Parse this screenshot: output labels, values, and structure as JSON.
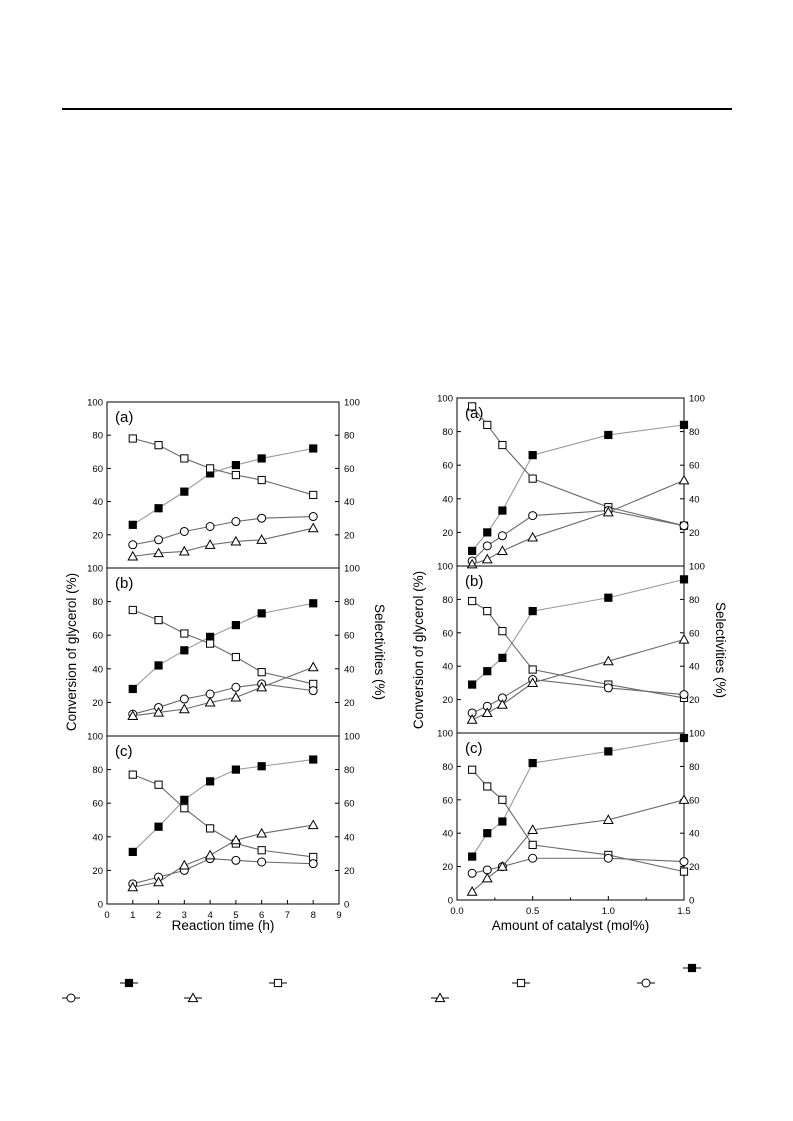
{
  "figure": {
    "left": {
      "ylabel_left": "Conversion of glycerol (%)",
      "ylabel_right": "Selectivities (%)",
      "xlabel": "Reaction time (h)",
      "xlim": [
        0,
        9
      ],
      "xticks": [
        0,
        1,
        2,
        3,
        4,
        5,
        6,
        7,
        8,
        9
      ],
      "panels": [
        "(a)",
        "(b)",
        "(c)"
      ]
    },
    "right": {
      "ylabel_left": "Conversion of glycerol (%)",
      "ylabel_right": "Selectivities (%)",
      "xlabel": "Amount of catalyst (mol%)",
      "xlim": [
        0.0,
        1.5
      ],
      "xticks": [
        "0.0",
        "0.5",
        "1.0",
        "1.5"
      ],
      "panels": [
        "(a)",
        "(b)",
        "(c)"
      ]
    },
    "legend_markers": [
      "filled-square",
      "open-square",
      "open-circle",
      "open-triangle"
    ]
  },
  "chart_data": [
    {
      "type": "line",
      "panel": "(a)",
      "group": "reaction-time",
      "xlabel": "Reaction time (h)",
      "ylabel": "Conversion of glycerol (%)",
      "ylabel_right": "Selectivities (%)",
      "x": [
        1,
        2,
        3,
        4,
        5,
        6,
        8
      ],
      "xlim": [
        0,
        9
      ],
      "ylim": [
        0,
        100
      ],
      "series": [
        {
          "marker": "filled-square",
          "values": [
            26,
            36,
            46,
            57,
            62,
            66,
            72
          ]
        },
        {
          "marker": "open-square",
          "values": [
            78,
            74,
            66,
            60,
            56,
            53,
            44
          ]
        },
        {
          "marker": "open-circle",
          "values": [
            14,
            17,
            22,
            25,
            28,
            30,
            31
          ]
        },
        {
          "marker": "open-triangle",
          "values": [
            7,
            9,
            10,
            14,
            16,
            17,
            24
          ]
        }
      ]
    },
    {
      "type": "line",
      "panel": "(b)",
      "group": "reaction-time",
      "xlabel": "Reaction time (h)",
      "ylabel": "Conversion of glycerol (%)",
      "ylabel_right": "Selectivities (%)",
      "x": [
        1,
        2,
        3,
        4,
        5,
        6,
        8
      ],
      "xlim": [
        0,
        9
      ],
      "ylim": [
        0,
        100
      ],
      "series": [
        {
          "marker": "filled-square",
          "values": [
            28,
            42,
            51,
            59,
            66,
            73,
            79
          ]
        },
        {
          "marker": "open-square",
          "values": [
            75,
            69,
            61,
            55,
            47,
            38,
            31
          ]
        },
        {
          "marker": "open-circle",
          "values": [
            13,
            17,
            22,
            25,
            29,
            31,
            27
          ]
        },
        {
          "marker": "open-triangle",
          "values": [
            12,
            14,
            16,
            20,
            23,
            29,
            41
          ]
        }
      ]
    },
    {
      "type": "line",
      "panel": "(c)",
      "group": "reaction-time",
      "xlabel": "Reaction time (h)",
      "ylabel": "Conversion of glycerol (%)",
      "ylabel_right": "Selectivities (%)",
      "x": [
        1,
        2,
        3,
        4,
        5,
        6,
        8
      ],
      "xlim": [
        0,
        9
      ],
      "ylim": [
        0,
        100
      ],
      "series": [
        {
          "marker": "filled-square",
          "values": [
            31,
            46,
            62,
            73,
            80,
            82,
            86
          ]
        },
        {
          "marker": "open-square",
          "values": [
            77,
            71,
            57,
            45,
            36,
            32,
            28
          ]
        },
        {
          "marker": "open-circle",
          "values": [
            12,
            16,
            20,
            27,
            26,
            25,
            24
          ]
        },
        {
          "marker": "open-triangle",
          "values": [
            10,
            13,
            23,
            29,
            38,
            42,
            47
          ]
        }
      ]
    },
    {
      "type": "line",
      "panel": "(a)",
      "group": "catalyst-amount",
      "xlabel": "Amount of catalyst (mol%)",
      "ylabel": "Conversion of glycerol (%)",
      "ylabel_right": "Selectivities (%)",
      "x": [
        0.1,
        0.2,
        0.3,
        0.5,
        1.0,
        1.5
      ],
      "xlim": [
        0.0,
        1.5
      ],
      "ylim": [
        0,
        100
      ],
      "series": [
        {
          "marker": "filled-square",
          "values": [
            9,
            20,
            33,
            66,
            78,
            84
          ]
        },
        {
          "marker": "open-square",
          "values": [
            95,
            84,
            72,
            52,
            35,
            24
          ]
        },
        {
          "marker": "open-circle",
          "values": [
            3,
            12,
            18,
            30,
            33,
            24
          ]
        },
        {
          "marker": "open-triangle",
          "values": [
            1,
            4,
            9,
            17,
            32,
            51
          ]
        }
      ]
    },
    {
      "type": "line",
      "panel": "(b)",
      "group": "catalyst-amount",
      "xlabel": "Amount of catalyst (mol%)",
      "ylabel": "Conversion of glycerol (%)",
      "ylabel_right": "Selectivities (%)",
      "x": [
        0.1,
        0.2,
        0.3,
        0.5,
        1.0,
        1.5
      ],
      "xlim": [
        0.0,
        1.5
      ],
      "ylim": [
        0,
        100
      ],
      "series": [
        {
          "marker": "filled-square",
          "values": [
            29,
            37,
            45,
            73,
            81,
            92
          ]
        },
        {
          "marker": "open-square",
          "values": [
            79,
            73,
            61,
            38,
            29,
            21
          ]
        },
        {
          "marker": "open-circle",
          "values": [
            12,
            16,
            21,
            32,
            27,
            23
          ]
        },
        {
          "marker": "open-triangle",
          "values": [
            8,
            12,
            17,
            30,
            43,
            56
          ]
        }
      ]
    },
    {
      "type": "line",
      "panel": "(c)",
      "group": "catalyst-amount",
      "xlabel": "Amount of catalyst (mol%)",
      "ylabel": "Conversion of glycerol (%)",
      "ylabel_right": "Selectivities (%)",
      "x": [
        0.1,
        0.2,
        0.3,
        0.5,
        1.0,
        1.5
      ],
      "xlim": [
        0.0,
        1.5
      ],
      "ylim": [
        0,
        100
      ],
      "series": [
        {
          "marker": "filled-square",
          "values": [
            26,
            40,
            47,
            82,
            89,
            97
          ]
        },
        {
          "marker": "open-square",
          "values": [
            78,
            68,
            60,
            33,
            27,
            17
          ]
        },
        {
          "marker": "open-circle",
          "values": [
            16,
            18,
            20,
            25,
            25,
            23
          ]
        },
        {
          "marker": "open-triangle",
          "values": [
            5,
            13,
            20,
            42,
            48,
            60
          ]
        }
      ]
    }
  ]
}
